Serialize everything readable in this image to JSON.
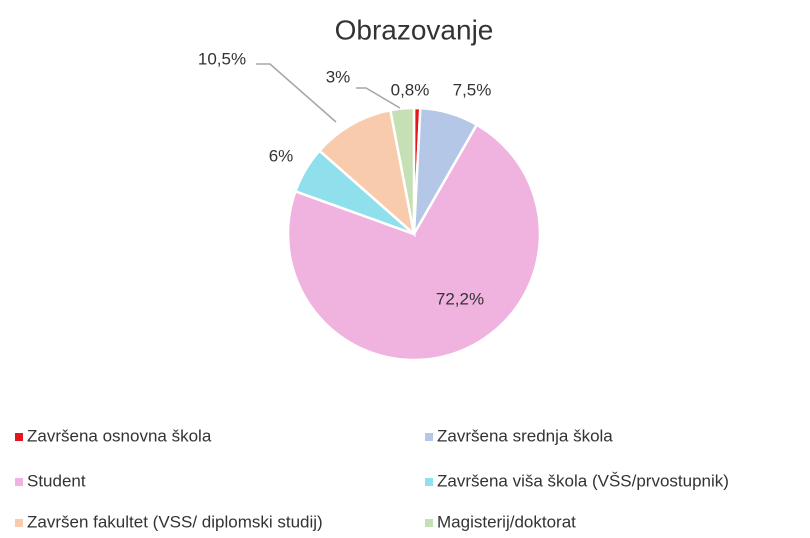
{
  "chart_data": {
    "type": "pie",
    "title": "Obrazovanje",
    "categories": [
      "Završena osnovna škola",
      "Završena srednja škola",
      "Student",
      "Završena viša škola (VŠS/prvostupnik)",
      "Završen fakultet (VSS/ diplomski studij)",
      "Magisterij/doktorat"
    ],
    "values": [
      0.8,
      7.5,
      72.2,
      6,
      10.5,
      3
    ],
    "value_labels": [
      "0,8%",
      "7,5%",
      "72,2%",
      "6%",
      "10,5%",
      "3%"
    ],
    "colors": [
      "#e8141c",
      "#b4c7e7",
      "#f0b3df",
      "#8fe0ec",
      "#f8cbad",
      "#c5e0b4"
    ],
    "legend": "bottom"
  }
}
